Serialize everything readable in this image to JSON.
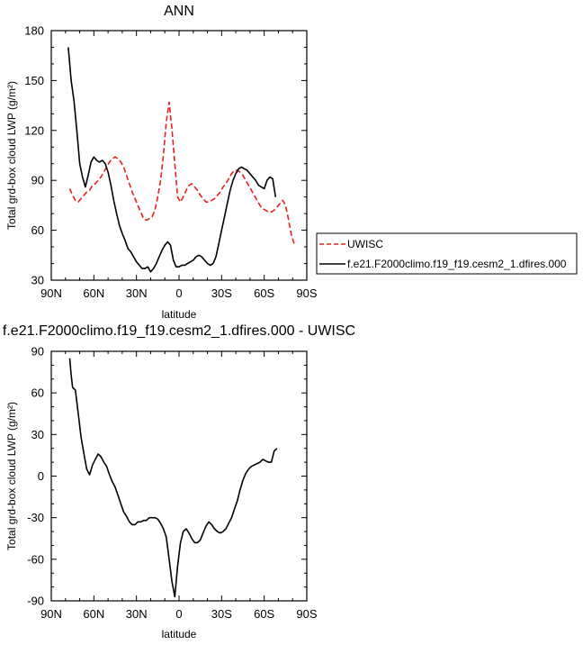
{
  "chart_data": [
    {
      "type": "line",
      "title": "ANN",
      "xlabel": "latitude",
      "ylabel": "Total grd-box cloud LWP (g/m²)",
      "xlim": [
        90,
        -90
      ],
      "ylim": [
        30,
        180
      ],
      "xticks": [
        "90N",
        "60N",
        "30N",
        "0",
        "30S",
        "60S",
        "90S"
      ],
      "yticks": [
        "30",
        "60",
        "90",
        "120",
        "150",
        "180"
      ],
      "legend": "right",
      "series": [
        {
          "name": "UWISC",
          "color": "#e8201c",
          "style": "dashed",
          "x": [
            77,
            75,
            73,
            71,
            69,
            67,
            65,
            63,
            61,
            59,
            57,
            55,
            53,
            51,
            49,
            47,
            45,
            43,
            41,
            39,
            37,
            35,
            33,
            31,
            29,
            27,
            25,
            23,
            21,
            19,
            17,
            15,
            13,
            11,
            9,
            7,
            5,
            3,
            1,
            -1,
            -3,
            -5,
            -7,
            -9,
            -11,
            -13,
            -15,
            -17,
            -19,
            -21,
            -23,
            -25,
            -27,
            -29,
            -31,
            -33,
            -35,
            -37,
            -39,
            -41,
            -43,
            -45,
            -47,
            -49,
            -51,
            -53,
            -55,
            -57,
            -59,
            -61,
            -63,
            -65,
            -67,
            -69,
            -71,
            -73,
            -75,
            -77,
            -79,
            -81
          ],
          "values": [
            85,
            81,
            78,
            77,
            79,
            81,
            83,
            84,
            87,
            88,
            90,
            92,
            95,
            98,
            101,
            103,
            104,
            103,
            101,
            98,
            93,
            88,
            83,
            79,
            75,
            71,
            67,
            66,
            67,
            68,
            72,
            80,
            90,
            105,
            125,
            137,
            121,
            100,
            80,
            77,
            80,
            84,
            87,
            88,
            86,
            84,
            81,
            79,
            77,
            77,
            78,
            79,
            81,
            83,
            86,
            88,
            91,
            94,
            96,
            96,
            95,
            93,
            90,
            87,
            84,
            81,
            78,
            75,
            73,
            72,
            71,
            71,
            72,
            74,
            76,
            78,
            75,
            67,
            58,
            52
          ]
        },
        {
          "name": "f.e21.F2000climo.f19_f19.cesm2_1.dfires.000",
          "color": "#000000",
          "style": "solid",
          "x": [
            78,
            76,
            74,
            72,
            70,
            68,
            66,
            64,
            62,
            60,
            58,
            56,
            54,
            52,
            50,
            48,
            46,
            44,
            42,
            40,
            38,
            36,
            34,
            32,
            30,
            28,
            26,
            24,
            22,
            20,
            18,
            16,
            14,
            12,
            10,
            8,
            6,
            4,
            2,
            0,
            -2,
            -4,
            -6,
            -8,
            -10,
            -12,
            -14,
            -16,
            -18,
            -20,
            -22,
            -24,
            -26,
            -28,
            -30,
            -32,
            -34,
            -36,
            -38,
            -40,
            -42,
            -44,
            -46,
            -48,
            -50,
            -52,
            -54,
            -56,
            -58,
            -60,
            -62,
            -64,
            -66,
            -68
          ],
          "values": [
            170,
            150,
            138,
            120,
            100,
            92,
            86,
            93,
            101,
            104,
            102,
            101,
            102,
            100,
            95,
            87,
            78,
            70,
            63,
            58,
            54,
            49,
            47,
            44,
            41,
            39,
            37,
            37,
            38,
            35,
            37,
            40,
            44,
            48,
            51,
            53,
            51,
            42,
            38,
            38,
            39,
            39,
            40,
            41,
            42,
            44,
            45,
            44,
            42,
            40,
            39,
            40,
            44,
            52,
            60,
            68,
            76,
            84,
            90,
            94,
            97,
            98,
            97,
            96,
            94,
            92,
            90,
            87,
            86,
            85,
            90,
            92,
            91,
            80
          ]
        }
      ]
    },
    {
      "type": "line",
      "title": "f.e21.F2000climo.f19_f19.cesm2_1.dfires.000 - UWISC",
      "xlabel": "latitude",
      "ylabel": "Total grd-box cloud LWP (g/m²)",
      "xlim": [
        90,
        -90
      ],
      "ylim": [
        -90,
        90
      ],
      "xticks": [
        "90N",
        "60N",
        "30N",
        "0",
        "30S",
        "60S",
        "90S"
      ],
      "yticks": [
        "-90",
        "-60",
        "-30",
        "0",
        "30",
        "60",
        "90"
      ],
      "series": [
        {
          "color": "#000000",
          "style": "solid",
          "x": [
            77,
            76,
            75,
            73,
            71,
            69,
            67,
            65,
            63,
            61,
            59,
            57,
            55,
            53,
            51,
            49,
            47,
            45,
            43,
            41,
            39,
            37,
            35,
            33,
            31,
            29,
            27,
            25,
            23,
            21,
            19,
            17,
            15,
            13,
            11,
            9,
            7,
            5,
            3,
            1,
            -1,
            -3,
            -5,
            -7,
            -9,
            -11,
            -13,
            -15,
            -17,
            -19,
            -21,
            -23,
            -25,
            -27,
            -29,
            -31,
            -33,
            -35,
            -37,
            -39,
            -41,
            -43,
            -45,
            -47,
            -49,
            -51,
            -53,
            -55,
            -57,
            -59,
            -61,
            -63,
            -65,
            -67,
            -69
          ],
          "values": [
            85,
            73,
            64,
            62,
            45,
            28,
            16,
            5,
            1,
            8,
            12,
            16,
            14,
            10,
            7,
            1,
            -4,
            -8,
            -14,
            -20,
            -26,
            -29,
            -33,
            -35,
            -35,
            -33,
            -33,
            -32,
            -32,
            -30,
            -30,
            -30,
            -31,
            -34,
            -38,
            -44,
            -60,
            -76,
            -87,
            -65,
            -48,
            -40,
            -38,
            -41,
            -45,
            -48,
            -48,
            -46,
            -41,
            -36,
            -33,
            -35,
            -38,
            -40,
            -41,
            -40,
            -38,
            -34,
            -30,
            -24,
            -18,
            -10,
            -3,
            2,
            5,
            7,
            8,
            9,
            10,
            12,
            11,
            10,
            10,
            18,
            20
          ]
        }
      ]
    }
  ]
}
